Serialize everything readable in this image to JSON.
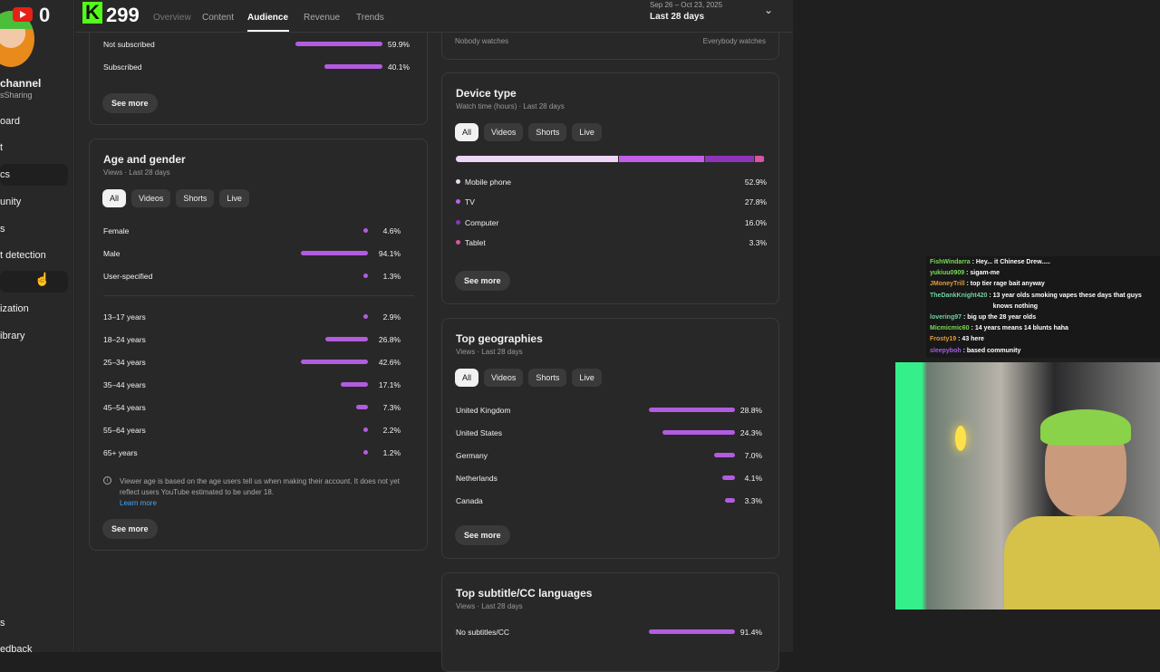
{
  "overlay": {
    "youtube_subs": "0",
    "kick_count": "299"
  },
  "sidebar": {
    "channel_name": "channel",
    "channel_handle": "sSharing",
    "items": [
      {
        "label": "oard"
      },
      {
        "label": "t"
      },
      {
        "label": "cs"
      },
      {
        "label": "unity"
      },
      {
        "label": "s"
      },
      {
        "label": "t detection"
      },
      {
        "label": ""
      },
      {
        "label": "ization"
      },
      {
        "label": "ibrary"
      }
    ],
    "bottom": [
      {
        "label": "s"
      },
      {
        "label": "edback"
      }
    ]
  },
  "header": {
    "tabs": [
      {
        "label": "Overview"
      },
      {
        "label": "Content"
      },
      {
        "label": "Audience"
      },
      {
        "label": "Revenue"
      },
      {
        "label": "Trends"
      }
    ],
    "active_tab": "Audience",
    "date_range": "Sep 26 – Oct 23, 2025",
    "period": "Last 28 days"
  },
  "subscription": {
    "rows": [
      {
        "label": "Not subscribed",
        "value": 59.9,
        "pct": "59.9%"
      },
      {
        "label": "Subscribed",
        "value": 40.1,
        "pct": "40.1%"
      }
    ],
    "see_more": "See more"
  },
  "watch_scale": {
    "left": "Nobody watches",
    "right": "Everybody watches"
  },
  "age_gender": {
    "title": "Age and gender",
    "subtitle": "Views · Last 28 days",
    "chips": [
      "All",
      "Videos",
      "Shorts",
      "Live"
    ],
    "gender": [
      {
        "label": "Female",
        "value": 4.6,
        "pct": "4.6%"
      },
      {
        "label": "Male",
        "value": 94.1,
        "pct": "94.1%"
      },
      {
        "label": "User-specified",
        "value": 1.3,
        "pct": "1.3%"
      }
    ],
    "ages": [
      {
        "label": "13–17 years",
        "value": 2.9,
        "pct": "2.9%"
      },
      {
        "label": "18–24 years",
        "value": 26.8,
        "pct": "26.8%"
      },
      {
        "label": "25–34 years",
        "value": 42.6,
        "pct": "42.6%"
      },
      {
        "label": "35–44 years",
        "value": 17.1,
        "pct": "17.1%"
      },
      {
        "label": "45–54 years",
        "value": 7.3,
        "pct": "7.3%"
      },
      {
        "label": "55–64 years",
        "value": 2.2,
        "pct": "2.2%"
      },
      {
        "label": "65+ years",
        "value": 1.2,
        "pct": "1.2%"
      }
    ],
    "note": "Viewer age is based on the age users tell us when making their account. It does not yet reflect users YouTube estimated to be under 18.",
    "learn_more": "Learn more",
    "see_more": "See more"
  },
  "device": {
    "title": "Device type",
    "subtitle": "Watch time (hours) · Last 28 days",
    "chips": [
      "All",
      "Videos",
      "Shorts",
      "Live"
    ],
    "rows": [
      {
        "label": "Mobile phone",
        "value": 52.9,
        "pct": "52.9%",
        "color": "#ecd7f5"
      },
      {
        "label": "TV",
        "value": 27.8,
        "pct": "27.8%",
        "color": "#c25ee8"
      },
      {
        "label": "Computer",
        "value": 16.0,
        "pct": "16.0%",
        "color": "#8e34b8"
      },
      {
        "label": "Tablet",
        "value": 3.3,
        "pct": "3.3%",
        "color": "#d9559f"
      }
    ],
    "see_more": "See more"
  },
  "geo": {
    "title": "Top geographies",
    "subtitle": "Views · Last 28 days",
    "chips": [
      "All",
      "Videos",
      "Shorts",
      "Live"
    ],
    "rows": [
      {
        "label": "United Kingdom",
        "value": 28.8,
        "pct": "28.8%"
      },
      {
        "label": "United States",
        "value": 24.3,
        "pct": "24.3%"
      },
      {
        "label": "Germany",
        "value": 7.0,
        "pct": "7.0%"
      },
      {
        "label": "Netherlands",
        "value": 4.1,
        "pct": "4.1%"
      },
      {
        "label": "Canada",
        "value": 3.3,
        "pct": "3.3%"
      }
    ],
    "see_more": "See more"
  },
  "subtitles": {
    "title": "Top subtitle/CC languages",
    "subtitle": "Views · Last 28 days",
    "rows": [
      {
        "label": "No subtitles/CC",
        "value": 91.4,
        "pct": "91.4%"
      }
    ]
  },
  "chat": [
    {
      "user": "FishWindarra",
      "color": "#7bd957",
      "msg": "Hey... it Chinese Drew....."
    },
    {
      "user": "yukiuu0909",
      "color": "#7bd957",
      "msg": "sigam-me"
    },
    {
      "user": "JMoneyTrill",
      "color": "#e39a3c",
      "msg": "top tier rage bait anyway"
    },
    {
      "user": "TheDankKnight420",
      "color": "#6fd0a0",
      "msg": "13 year olds smoking vapes these days that guys knows nothing"
    },
    {
      "user": "lovering97",
      "color": "#6fd0a0",
      "msg": "big up the 28 year olds"
    },
    {
      "user": "Micmicmic60",
      "color": "#7bd957",
      "msg": "14 years means 14 blunts haha"
    },
    {
      "user": "Frosty19",
      "color": "#e39a3c",
      "msg": "43 here"
    },
    {
      "user": "sleepyboh",
      "color": "#a55ee0",
      "msg": "based community"
    }
  ],
  "colors": {
    "accent": "#b25ce0",
    "link": "#3ea6ff"
  }
}
